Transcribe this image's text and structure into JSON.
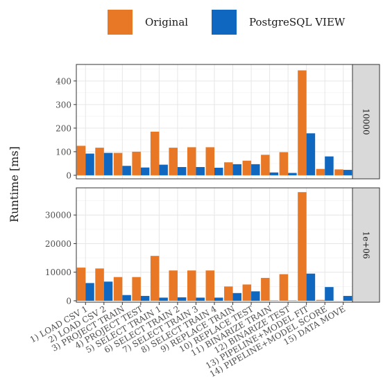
{
  "colors": {
    "Original": "#e87825",
    "PostgreSQL VIEW": "#0f67c0",
    "panel_bg": "#ffffff",
    "grid": "#e6e6e6",
    "strip_bg": "#d9d9d9"
  },
  "legend": {
    "items": [
      "Original",
      "PostgreSQL VIEW"
    ]
  },
  "chart_data": {
    "type": "bar",
    "ylabel": "Runtime [ms]",
    "categories": [
      "1) LOAD CSV 1",
      "2) LOAD CSV 2",
      "3) PROJECT TRAIN",
      "4) PROJECT TEST",
      "5) SELECT TRAIN 1",
      "6) SELECT TRAIN 2",
      "7) SELECT TRAIN 3",
      "8) SELECT TRAIN 4",
      "9) REPLACE TRAIN",
      "10) REPLACE TEST",
      "11) BINARIZE TRAIN",
      "12) BINARIZE TEST",
      "13) PIPELINE+MODEL FIT",
      "14) PIPELINE+MODEL SCORE",
      "15) DATA MOVE"
    ],
    "legend": "top",
    "grid": true,
    "panels": [
      {
        "label": "10000",
        "ylim": [
          -15,
          470
        ],
        "yticks": [
          0,
          100,
          200,
          300,
          400
        ],
        "series": [
          {
            "name": "Original",
            "values": [
              125,
              117,
              95,
              100,
              185,
              117,
              119,
              119,
              55,
              62,
              87,
              98,
              445,
              27,
              25
            ]
          },
          {
            "name": "PostgreSQL VIEW",
            "values": [
              92,
              95,
              40,
              33,
              45,
              35,
              35,
              32,
              47,
              47,
              12,
              10,
              178,
              80,
              23
            ]
          }
        ]
      },
      {
        "label": "1e+06",
        "ylim": [
          -500,
          39500
        ],
        "yticks": [
          0,
          10000,
          20000,
          30000
        ],
        "series": [
          {
            "name": "Original",
            "values": [
              11600,
              11300,
              8300,
              8300,
              15700,
              10600,
              10600,
              10600,
              5000,
              5700,
              8000,
              9300,
              38000,
              300,
              0
            ]
          },
          {
            "name": "PostgreSQL VIEW",
            "values": [
              6200,
              6700,
              2000,
              1700,
              1100,
              1200,
              1100,
              1100,
              2700,
              3300,
              100,
              100,
              9500,
              4800,
              1700
            ]
          }
        ]
      }
    ]
  }
}
